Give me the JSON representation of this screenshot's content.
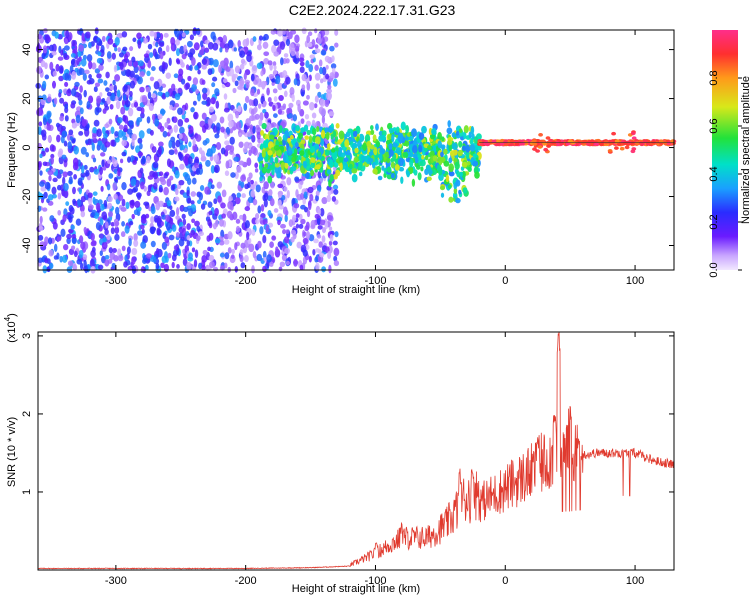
{
  "chart_data": [
    {
      "type": "heatmap",
      "title": "C2E2.2024.222.17.31.G23",
      "xlabel": "Height of straight line (km)",
      "ylabel": "Frequency (Hz)",
      "xlim": [
        -360,
        130
      ],
      "ylim": [
        -50,
        48
      ],
      "xticks": [
        -300,
        -200,
        -100,
        0,
        100
      ],
      "yticks": [
        -40,
        -20,
        0,
        20,
        40
      ],
      "colorbar": {
        "label": "Normalized spectral amplitude",
        "range": [
          0.0,
          1.0
        ],
        "ticks": [
          0.0,
          0.2,
          0.4,
          0.6,
          0.8
        ]
      },
      "regions": [
        {
          "x": [
            -360,
            -130
          ],
          "y": [
            -50,
            48
          ],
          "amplitude": [
            0.05,
            0.35
          ],
          "pattern": "scattered noise"
        },
        {
          "x": [
            -190,
            -20
          ],
          "y": [
            -15,
            12
          ],
          "amplitude": [
            0.3,
            0.7
          ],
          "pattern": "clustered band"
        },
        {
          "x": [
            -20,
            130
          ],
          "y": [
            -1,
            4
          ],
          "amplitude": [
            0.8,
            1.0
          ],
          "pattern": "narrow band near 2 Hz"
        }
      ]
    },
    {
      "type": "line",
      "title": "",
      "xlabel": "Height of straight line (km)",
      "ylabel": "SNR (10 * v/v)",
      "y_multiplier_label": "(x10",
      "y_multiplier_exponent": "4",
      "y_multiplier_suffix": ")",
      "xlim": [
        -360,
        130
      ],
      "ylim": [
        0,
        3.05
      ],
      "xticks": [
        -300,
        -200,
        -100,
        0,
        100
      ],
      "yticks": [
        1,
        2,
        3
      ],
      "series": [
        {
          "color": "#e03a2e",
          "envelope": [
            {
              "x": -360,
              "y": 0.02
            },
            {
              "x": -200,
              "y": 0.02
            },
            {
              "x": -150,
              "y": 0.03
            },
            {
              "x": -120,
              "y": 0.05
            },
            {
              "x": -100,
              "y": 0.18
            },
            {
              "x": -80,
              "y": 0.35
            },
            {
              "x": -60,
              "y": 0.35
            },
            {
              "x": -45,
              "y": 0.5
            },
            {
              "x": -30,
              "y": 0.8
            },
            {
              "x": -15,
              "y": 0.9
            },
            {
              "x": 0,
              "y": 1.05
            },
            {
              "x": 20,
              "y": 1.25
            },
            {
              "x": 35,
              "y": 1.45
            },
            {
              "x": 50,
              "y": 1.45
            },
            {
              "x": 70,
              "y": 1.5
            },
            {
              "x": 100,
              "y": 1.5
            },
            {
              "x": 115,
              "y": 1.4
            },
            {
              "x": 130,
              "y": 1.35
            }
          ],
          "spikes": [
            {
              "x": -100,
              "y": 0.35
            },
            {
              "x": -80,
              "y": 0.6
            },
            {
              "x": -35,
              "y": 1.3
            },
            {
              "x": -25,
              "y": 1.25
            },
            {
              "x": 25,
              "y": 1.7
            },
            {
              "x": 38,
              "y": 2.0
            },
            {
              "x": 41,
              "y": 3.05
            },
            {
              "x": 50,
              "y": 2.1
            },
            {
              "x": 90,
              "y": 1.55
            },
            {
              "x": 105,
              "y": 1.45
            }
          ]
        }
      ]
    }
  ]
}
